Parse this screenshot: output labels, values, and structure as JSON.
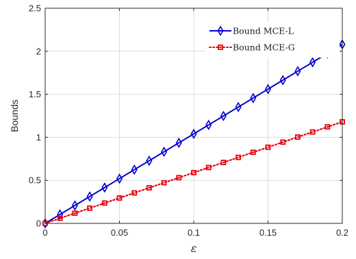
{
  "chart_data": {
    "type": "line",
    "xlabel": "ε",
    "ylabel": "Bounds",
    "xlim": [
      0,
      0.2
    ],
    "ylim": [
      0,
      2.5
    ],
    "grid": true,
    "legend_position": "top-right",
    "xticks": [
      0,
      0.05,
      0.1,
      0.15,
      0.2
    ],
    "xtick_labels": [
      "0",
      "0.05",
      "0.1",
      "0.15",
      "0.2"
    ],
    "yticks": [
      0,
      0.5,
      1,
      1.5,
      2,
      2.5
    ],
    "ytick_labels": [
      "0",
      "0.5",
      "1",
      "1.5",
      "2",
      "2.5"
    ],
    "x": [
      0,
      0.01,
      0.02,
      0.03,
      0.04,
      0.05,
      0.06,
      0.07,
      0.08,
      0.09,
      0.1,
      0.11,
      0.12,
      0.13,
      0.14,
      0.15,
      0.16,
      0.17,
      0.18,
      0.19,
      0.2
    ],
    "series": [
      {
        "name": "Bound MCE-L",
        "color": "#0000cc",
        "line_style": "solid",
        "marker": "diamond",
        "values": [
          0,
          0.104,
          0.208,
          0.312,
          0.416,
          0.52,
          0.624,
          0.728,
          0.832,
          0.936,
          1.04,
          1.144,
          1.248,
          1.352,
          1.456,
          1.56,
          1.664,
          1.768,
          1.872,
          1.976,
          2.08
        ]
      },
      {
        "name": "Bound MCE-G",
        "color": "#e8000b",
        "line_style": "dotted",
        "marker": "square",
        "values": [
          0,
          0.059,
          0.118,
          0.177,
          0.236,
          0.295,
          0.354,
          0.413,
          0.472,
          0.531,
          0.59,
          0.649,
          0.708,
          0.767,
          0.826,
          0.885,
          0.944,
          1.003,
          1.062,
          1.121,
          1.18
        ]
      }
    ]
  }
}
